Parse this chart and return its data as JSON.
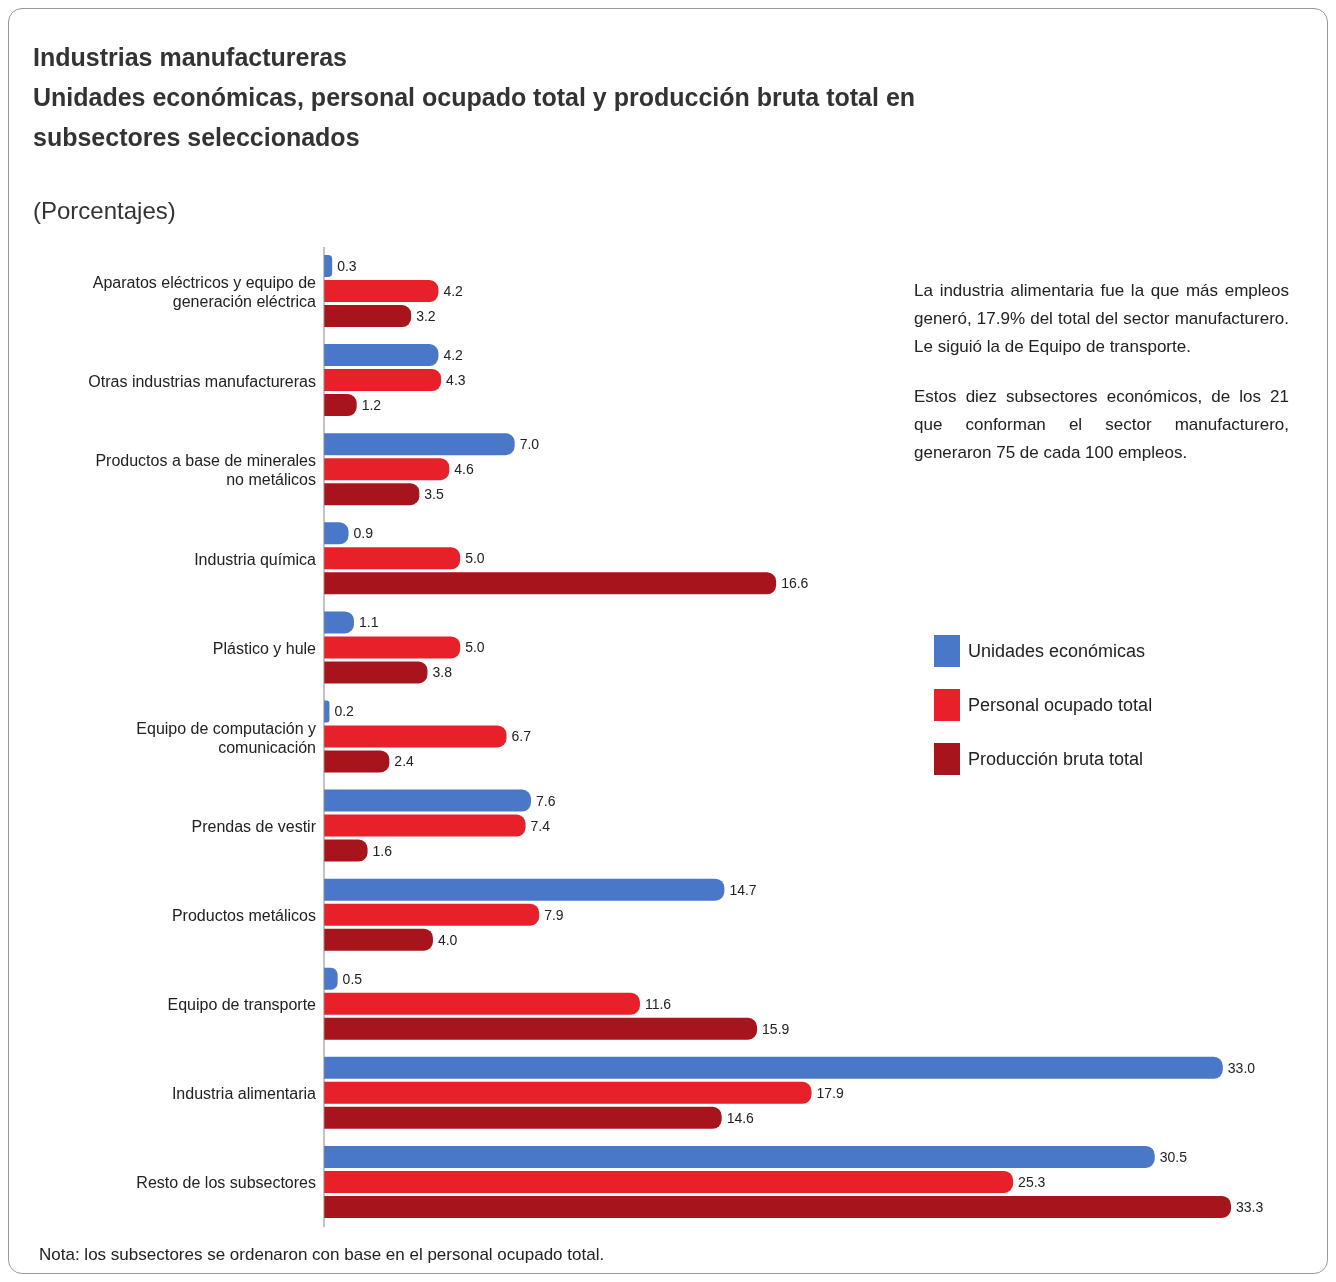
{
  "chart_data": {
    "type": "bar",
    "orientation": "horizontal",
    "title": "Industrias manufactureras",
    "subtitle": "Unidades económicas, personal ocupado total y producción bruta total en subsectores seleccionados",
    "categories": [
      "Aparatos eléctricos y equipo de generación eléctrica",
      "Otras industrias manufactureras",
      "Productos a base de minerales no metálicos",
      "Industria química",
      "Plástico y hule",
      "Equipo de computación y comunicación",
      "Prendas de vestir",
      "Productos metálicos",
      "Equipo de transporte",
      "Industria alimentaria",
      "Resto de los subsectores"
    ],
    "series": [
      {
        "name": "Unidades económicas",
        "color": "#4a78c8",
        "values": [
          0.3,
          4.2,
          7.0,
          0.9,
          1.1,
          0.2,
          7.6,
          14.7,
          0.5,
          33.0,
          30.5
        ],
        "value_labels": [
          "0.3",
          "4.2",
          "7.0",
          "0.9",
          "1.1",
          "0.2",
          "7.6",
          "14.7",
          "0.5",
          "33.0",
          "30.5"
        ]
      },
      {
        "name": "Personal ocupado total",
        "color": "#e8202a",
        "values": [
          4.2,
          4.3,
          4.6,
          5.0,
          5.0,
          6.7,
          7.4,
          7.9,
          11.6,
          17.9,
          25.3
        ],
        "value_labels": [
          "4.2",
          "4.3",
          "4.6",
          "5.0",
          "5.0",
          "6.7",
          "7.4",
          "7.9",
          "11.6",
          "17.9",
          "25.3"
        ]
      },
      {
        "name": "Producción bruta total",
        "color": "#a8141c",
        "values": [
          3.2,
          1.2,
          3.5,
          16.6,
          3.8,
          2.4,
          1.6,
          4.0,
          15.9,
          14.6,
          33.3
        ],
        "value_labels": [
          "3.2",
          "1.2",
          "3.5",
          "16.6",
          "3.8",
          "2.4",
          "1.6",
          "4.0",
          "15.9",
          "14.6",
          "33.3"
        ]
      }
    ],
    "legend": "right",
    "tick_labels": "y",
    "annotations": [
      "(Porcentajes)",
      "La industria alimentaria fue la que más empleos generó, 17.9% del total del sector manufacturero. Le siguió la de Equipo de transporte.",
      "Estos diez subsectores económicos, de los 21 que conforman el sector manufacturero, generaron 75 de cada 100 empleos.",
      "Nota: los subsectores se ordenaron con base en el personal ocupado total."
    ]
  }
}
